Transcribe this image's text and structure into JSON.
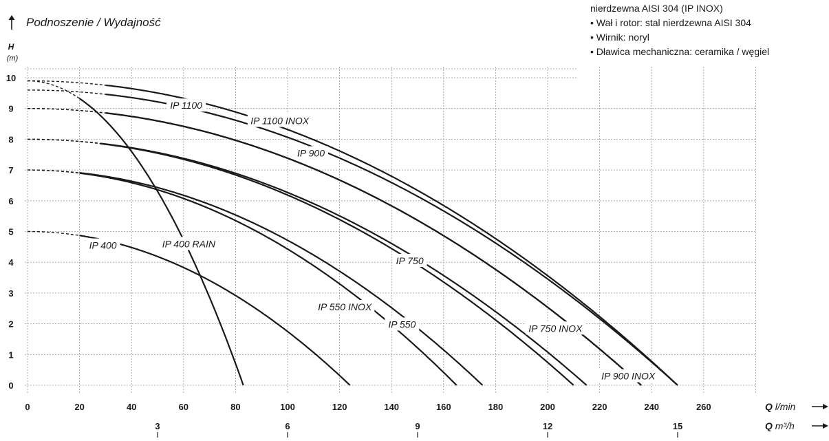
{
  "title": "Podnoszenie / Wydajność",
  "notes": [
    "nierdzewna AISI 304 (IP INOX)",
    "• Wał i rotor: stal nierdzewna AISI 304",
    "• Wirnik: noryl",
    "• Dławica mechaniczna: ceramika / węgiel"
  ],
  "chart_data": {
    "type": "line",
    "ylabel": "H",
    "ylabel_unit": "(m)",
    "xlabel_bold": "Q",
    "xlabel_unit": "l/min",
    "x2label_bold": "Q",
    "x2label_unit": "m³/h",
    "x2_ticks": [
      3,
      6,
      9,
      12,
      15
    ],
    "xlim": [
      0,
      280
    ],
    "ylim": [
      0,
      10
    ],
    "x_ticks": [
      0,
      20,
      40,
      60,
      80,
      100,
      120,
      140,
      160,
      180,
      200,
      220,
      240,
      260
    ],
    "y_ticks": [
      0,
      1,
      2,
      3,
      4,
      5,
      6,
      7,
      8,
      9,
      10
    ],
    "grid": true,
    "series": [
      {
        "name": "IP 400",
        "shutoff": 5.0,
        "max_flow": 124,
        "dash_until": 20,
        "label_at": [
          29,
          4.55
        ]
      },
      {
        "name": "IP 400 RAIN",
        "shutoff": 9.9,
        "max_flow": 83,
        "dash_until": 20,
        "label_at": [
          62,
          4.6
        ]
      },
      {
        "name": "IP 550",
        "shutoff": 7.0,
        "max_flow": 175,
        "dash_until": 20,
        "label_at": [
          144,
          1.98
        ]
      },
      {
        "name": "IP 550 INOX",
        "shutoff": 7.0,
        "max_flow": 165,
        "dash_until": 20,
        "label_at": [
          122,
          2.55
        ]
      },
      {
        "name": "IP 750",
        "shutoff": 8.0,
        "max_flow": 210,
        "dash_until": 28,
        "label_at": [
          147,
          4.05
        ]
      },
      {
        "name": "IP 750 INOX",
        "shutoff": 8.0,
        "max_flow": 215,
        "dash_until": 28,
        "label_at": [
          203,
          1.85
        ]
      },
      {
        "name": "IP 900",
        "shutoff": 9.0,
        "max_flow": 236,
        "dash_until": 30,
        "label_at": [
          109,
          7.55
        ]
      },
      {
        "name": "IP 900 INOX",
        "shutoff": 9.0,
        "max_flow": 236,
        "dash_until": 30,
        "label_at": [
          231,
          0.3
        ]
      },
      {
        "name": "IP 1100",
        "shutoff": 9.6,
        "max_flow": 250,
        "dash_until": 30,
        "label_at": [
          61,
          9.1
        ]
      },
      {
        "name": "IP 1100 INOX",
        "shutoff": 9.9,
        "max_flow": 250,
        "dash_until": 30,
        "label_at": [
          97,
          8.6
        ]
      }
    ]
  }
}
